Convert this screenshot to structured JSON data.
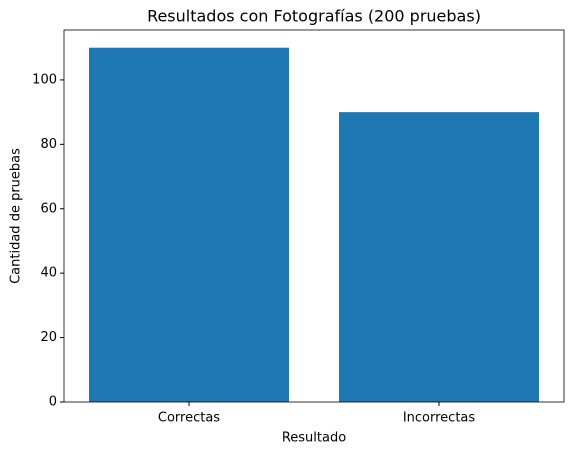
{
  "chart_data": {
    "type": "bar",
    "title": "Resultados con Fotografías (200 pruebas)",
    "x_label": "Resultado",
    "y_label": "Cantidad de pruebas",
    "categories": [
      "Correctas",
      "Incorrectas"
    ],
    "values": [
      110,
      90
    ],
    "color": "#1f77b4",
    "ylim": [
      0,
      115.5
    ],
    "yticks": [
      0,
      20,
      40,
      60,
      80,
      100
    ],
    "grid": false
  }
}
